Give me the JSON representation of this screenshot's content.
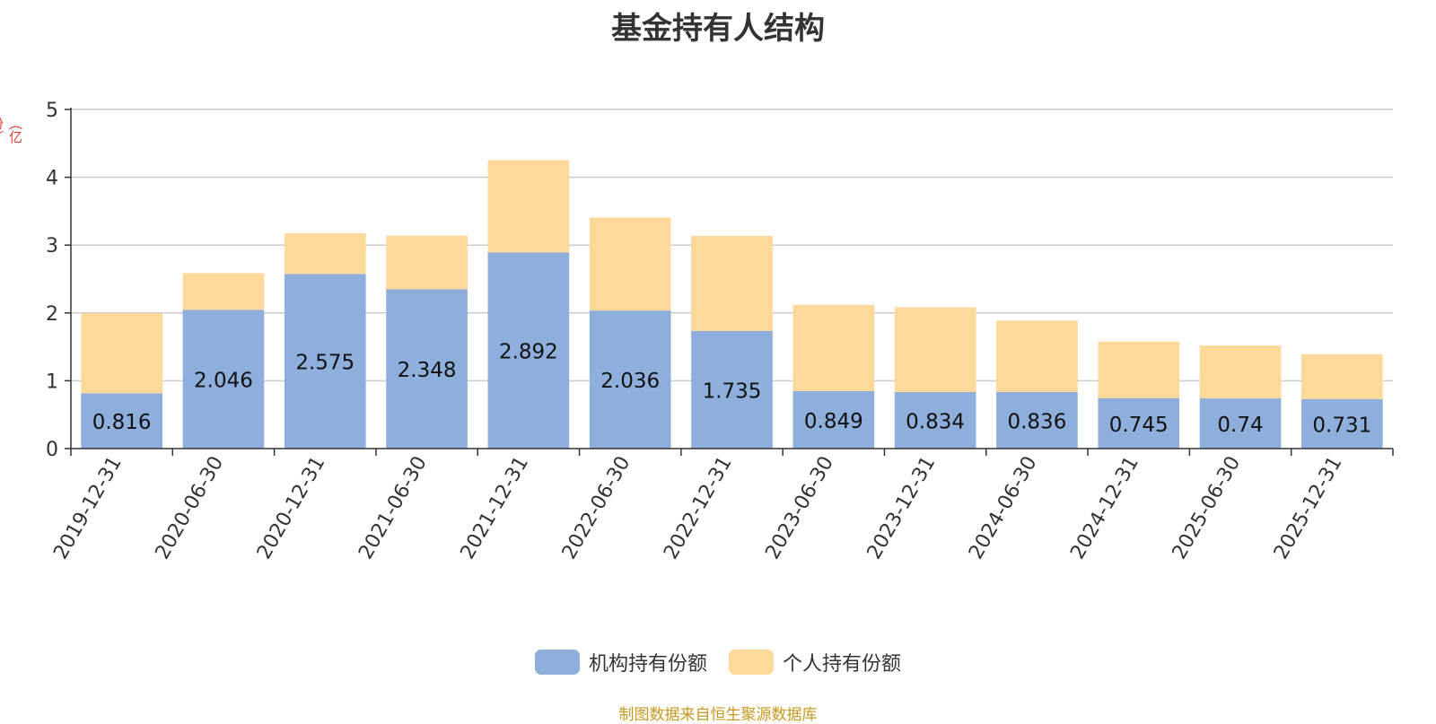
{
  "chart_data": {
    "type": "bar",
    "stacked": true,
    "title": "基金持有人结构",
    "ylabel": "（亿份）",
    "categories": [
      "2019-12-31",
      "2020-06-30",
      "2020-12-31",
      "2021-06-30",
      "2021-12-31",
      "2022-06-30",
      "2022-12-31",
      "2023-06-30",
      "2023-12-31",
      "2024-06-30",
      "2024-12-31",
      "2025-06-30",
      "2025-12-31"
    ],
    "series": [
      {
        "name": "机构持有份额",
        "color": "#8eaedb",
        "values": [
          0.816,
          2.046,
          2.575,
          2.348,
          2.892,
          2.036,
          1.735,
          0.849,
          0.834,
          0.836,
          0.745,
          0.74,
          0.731
        ]
      },
      {
        "name": "个人持有份额",
        "color": "#ffd999",
        "values": [
          1.18,
          0.54,
          0.6,
          0.79,
          1.36,
          1.37,
          1.4,
          1.27,
          1.25,
          1.05,
          0.83,
          0.78,
          0.66
        ]
      }
    ],
    "ylim": [
      0,
      5
    ],
    "yticks": [
      0,
      1,
      2,
      3,
      4,
      5
    ],
    "grid": true,
    "legend_position": "bottom"
  },
  "source_note": "制图数据来自恒生聚源数据库"
}
